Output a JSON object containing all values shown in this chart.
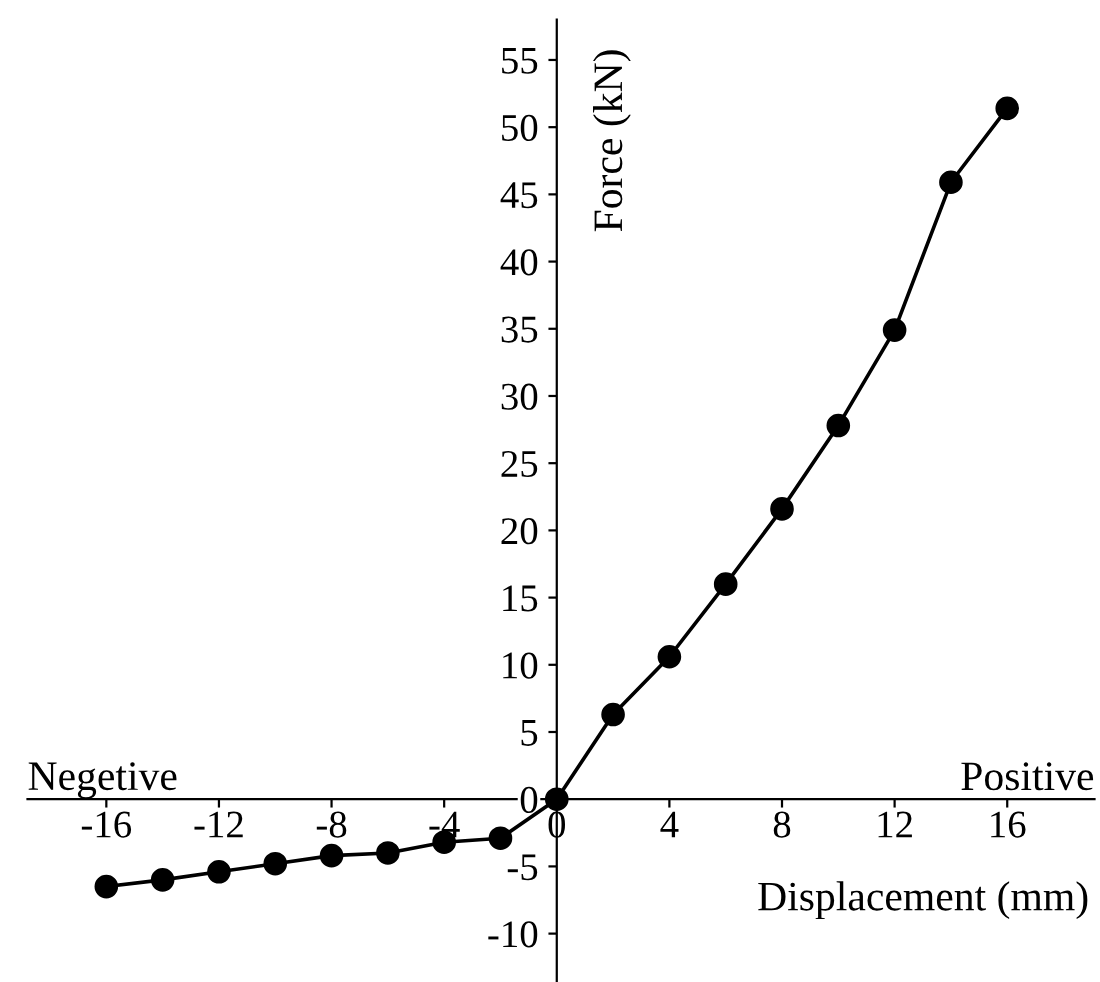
{
  "chart_data": {
    "type": "line",
    "xlabel": "Displacement (mm)",
    "ylabel": "Force (kN)",
    "x": [
      -16,
      -14,
      -12,
      -10,
      -8,
      -6,
      -4,
      -2,
      0,
      2,
      4,
      6,
      8,
      10,
      12,
      14,
      16
    ],
    "series": [
      {
        "color": "#000000",
        "values": [
          -6.5,
          -6.0,
          -5.4,
          -4.8,
          -4.2,
          -4.0,
          -3.2,
          -2.9,
          0,
          6.3,
          10.6,
          16.0,
          21.6,
          27.8,
          34.9,
          45.9,
          51.4
        ]
      }
    ],
    "xlim": [
      -18.8,
      19.1
    ],
    "ylim": [
      -13.6,
      58
    ],
    "xticks": [
      -16,
      -12,
      -8,
      -4,
      0,
      4,
      8,
      12,
      16
    ],
    "yticks": [
      -10,
      -5,
      0,
      5,
      10,
      15,
      20,
      25,
      30,
      35,
      40,
      45,
      50,
      55
    ],
    "annotations": [
      "Negetive",
      "Positive"
    ],
    "marker": "circle",
    "line_style": "solid",
    "grid": false,
    "legend": false
  }
}
